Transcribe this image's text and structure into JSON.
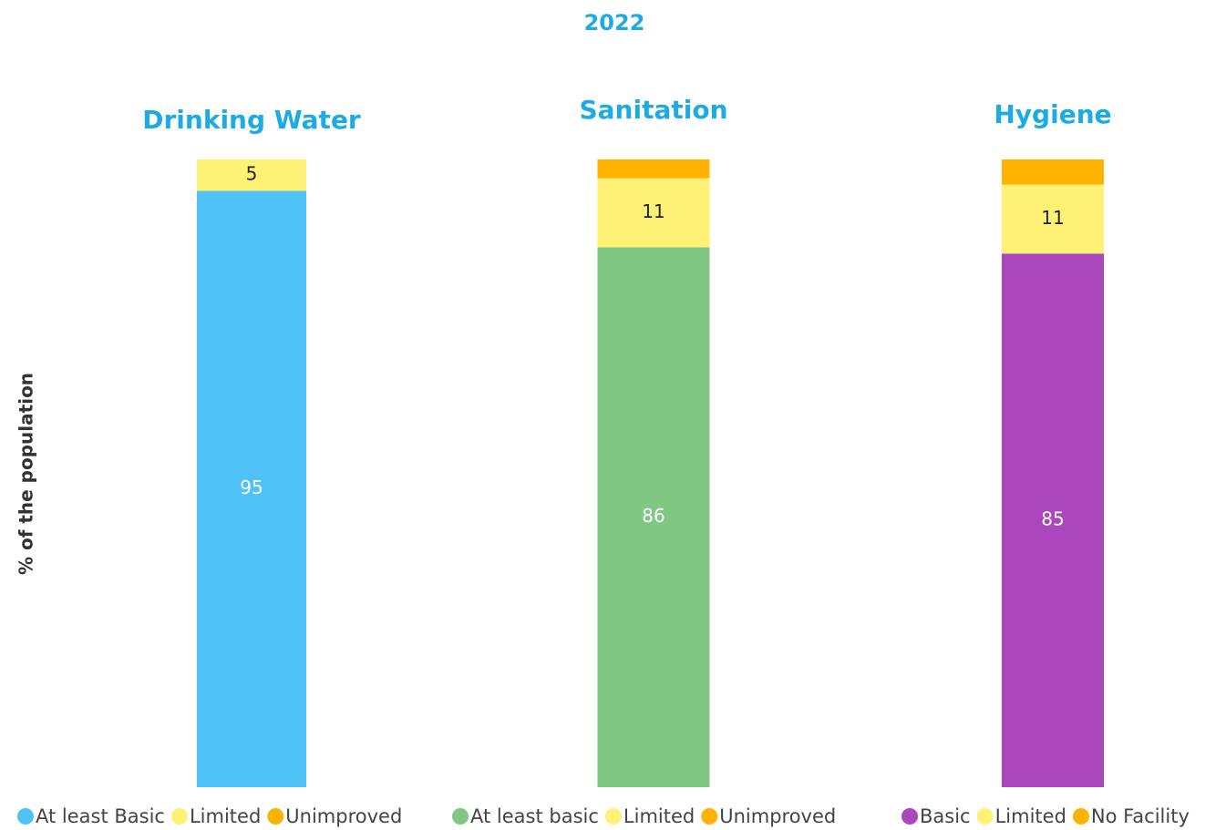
{
  "title": "2022",
  "y_label": "% of the population",
  "chart_data": [
    {
      "type": "bar",
      "stacked": true,
      "title": "Drinking Water",
      "ylim": [
        0,
        100
      ],
      "series": [
        {
          "name": "At least Basic",
          "color": "#4fc3f7",
          "values": [
            95
          ]
        },
        {
          "name": "Limited",
          "color": "#fff176",
          "values": [
            5
          ]
        },
        {
          "name": "Unimproved",
          "color": "#ffb300",
          "values": [
            0
          ]
        }
      ]
    },
    {
      "type": "bar",
      "stacked": true,
      "title": "Sanitation",
      "ylim": [
        0,
        100
      ],
      "series": [
        {
          "name": "At least basic",
          "color": "#81c784",
          "values": [
            86
          ]
        },
        {
          "name": "Limited",
          "color": "#fff176",
          "values": [
            11
          ]
        },
        {
          "name": "Unimproved",
          "color": "#ffb300",
          "values": [
            3
          ]
        }
      ]
    },
    {
      "type": "bar",
      "stacked": true,
      "title": "Hygiene",
      "ylim": [
        0,
        100
      ],
      "series": [
        {
          "name": "Basic",
          "color": "#ab47bc",
          "values": [
            85
          ]
        },
        {
          "name": "Limited",
          "color": "#fff176",
          "values": [
            11
          ]
        },
        {
          "name": "No Facility",
          "color": "#ffb300",
          "values": [
            4
          ]
        }
      ]
    }
  ]
}
